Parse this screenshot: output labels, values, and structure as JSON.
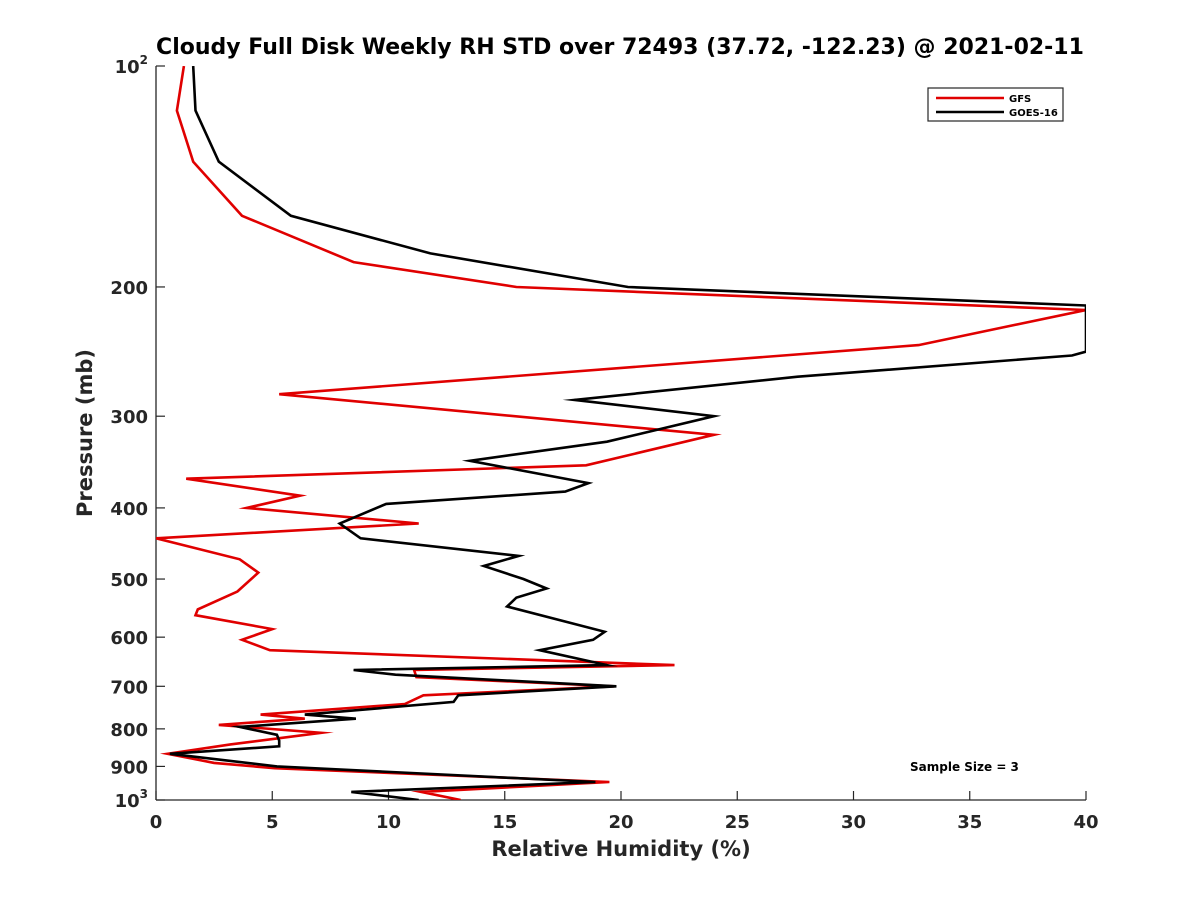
{
  "chart_data": {
    "type": "line",
    "title": "Cloudy Full Disk Weekly RH STD over 72493 (37.72, -122.23) @ 2021-02-11",
    "xlabel": "Relative Humidity (%)",
    "ylabel": "Pressure (mb)",
    "xlim": [
      0,
      40
    ],
    "ylim": [
      100,
      1000
    ],
    "y_scale": "log",
    "y_reversed": true,
    "grid": false,
    "legend_position": "top-right",
    "x_ticks": [
      {
        "value": 0,
        "label": "0"
      },
      {
        "value": 5,
        "label": "5"
      },
      {
        "value": 10,
        "label": "10"
      },
      {
        "value": 15,
        "label": "15"
      },
      {
        "value": 20,
        "label": "20"
      },
      {
        "value": 25,
        "label": "25"
      },
      {
        "value": 30,
        "label": "30"
      },
      {
        "value": 35,
        "label": "35"
      },
      {
        "value": 40,
        "label": "40"
      }
    ],
    "y_ticks": [
      {
        "value": 100,
        "label": "10",
        "sup": "2"
      },
      {
        "value": 200,
        "label": "200",
        "sup": ""
      },
      {
        "value": 300,
        "label": "300",
        "sup": ""
      },
      {
        "value": 400,
        "label": "400",
        "sup": ""
      },
      {
        "value": 500,
        "label": "500",
        "sup": ""
      },
      {
        "value": 600,
        "label": "600",
        "sup": ""
      },
      {
        "value": 700,
        "label": "700",
        "sup": ""
      },
      {
        "value": 800,
        "label": "800",
        "sup": ""
      },
      {
        "value": 900,
        "label": "900",
        "sup": ""
      },
      {
        "value": 1000,
        "label": "10",
        "sup": "3"
      }
    ],
    "annotation": "Sample Size = 3",
    "series": [
      {
        "name": "GFS",
        "color": "#e00000",
        "points": [
          [
            1.2,
            100
          ],
          [
            0.9,
            115
          ],
          [
            1.6,
            135
          ],
          [
            3.7,
            160
          ],
          [
            8.5,
            185
          ],
          [
            15.5,
            200
          ],
          [
            40,
            215
          ],
          [
            32.8,
            240
          ],
          [
            5.3,
            280
          ],
          [
            24.0,
            318
          ],
          [
            18.5,
            350
          ],
          [
            1.3,
            365
          ],
          [
            6.2,
            385
          ],
          [
            3.9,
            400
          ],
          [
            11.3,
            420
          ],
          [
            0,
            440
          ],
          [
            3.6,
            470
          ],
          [
            4.4,
            490
          ],
          [
            3.5,
            520
          ],
          [
            1.8,
            550
          ],
          [
            1.7,
            560
          ],
          [
            5.0,
            585
          ],
          [
            3.7,
            605
          ],
          [
            4.9,
            625
          ],
          [
            22.3,
            655
          ],
          [
            11.1,
            665
          ],
          [
            11.2,
            680
          ],
          [
            19.7,
            700
          ],
          [
            11.5,
            720
          ],
          [
            10.7,
            740
          ],
          [
            4.5,
            765
          ],
          [
            6.4,
            775
          ],
          [
            2.7,
            790
          ],
          [
            7.1,
            810
          ],
          [
            3.2,
            840
          ],
          [
            0.5,
            865
          ],
          [
            2.5,
            890
          ],
          [
            5.1,
            905
          ],
          [
            19.5,
            945
          ],
          [
            11.4,
            975
          ],
          [
            13.1,
            1000
          ]
        ]
      },
      {
        "name": "GOES-16",
        "color": "#000000",
        "points": [
          [
            1.6,
            100
          ],
          [
            1.7,
            115
          ],
          [
            2.7,
            135
          ],
          [
            5.8,
            160
          ],
          [
            11.8,
            180
          ],
          [
            20.3,
            200
          ],
          [
            40,
            212
          ],
          [
            40,
            245
          ],
          [
            39.4,
            248
          ],
          [
            27.6,
            265
          ],
          [
            18.0,
            285
          ],
          [
            24.0,
            300
          ],
          [
            19.4,
            325
          ],
          [
            13.5,
            345
          ],
          [
            18.6,
            370
          ],
          [
            17.6,
            380
          ],
          [
            9.9,
            395
          ],
          [
            7.9,
            420
          ],
          [
            8.8,
            440
          ],
          [
            15.6,
            465
          ],
          [
            14.1,
            480
          ],
          [
            15.8,
            500
          ],
          [
            16.8,
            515
          ],
          [
            15.5,
            530
          ],
          [
            15.1,
            545
          ],
          [
            19.3,
            590
          ],
          [
            18.8,
            605
          ],
          [
            16.5,
            625
          ],
          [
            19.4,
            655
          ],
          [
            8.5,
            665
          ],
          [
            10.3,
            675
          ],
          [
            19.8,
            700
          ],
          [
            13.0,
            720
          ],
          [
            12.8,
            735
          ],
          [
            6.4,
            765
          ],
          [
            8.6,
            775
          ],
          [
            3.6,
            795
          ],
          [
            5.2,
            815
          ],
          [
            5.3,
            830
          ],
          [
            5.3,
            845
          ],
          [
            0.6,
            865
          ],
          [
            5.2,
            900
          ],
          [
            18.9,
            945
          ],
          [
            8.4,
            975
          ],
          [
            11.3,
            1000
          ]
        ]
      }
    ]
  }
}
